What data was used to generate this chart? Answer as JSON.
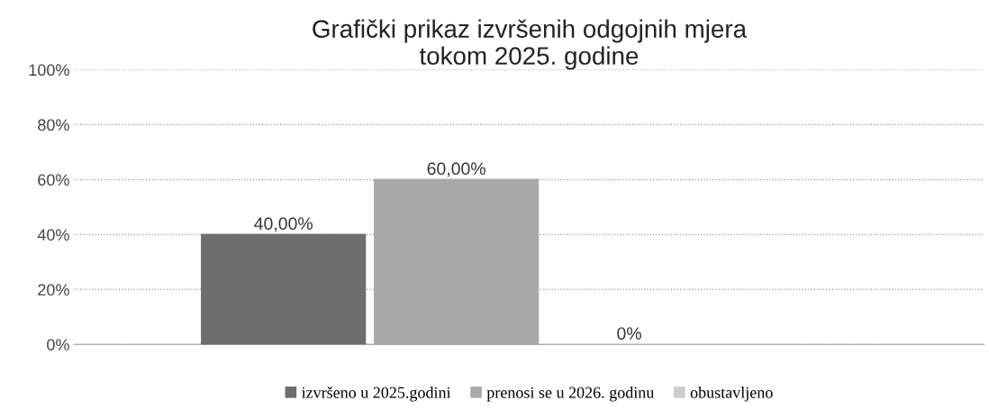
{
  "chart_data": {
    "type": "bar",
    "title": "Grafički prikaz izvršenih odgojnih mjera\ntokom 2025. godine",
    "categories": [
      null
    ],
    "series": [
      {
        "name": "izvršeno u 2025.godini",
        "color": "#6e6e6e",
        "values": [
          40
        ],
        "value_labels": [
          "40,00%"
        ]
      },
      {
        "name": "prenosi se u 2026. godinu",
        "color": "#a9a9a9",
        "values": [
          60
        ],
        "value_labels": [
          "60,00%"
        ]
      },
      {
        "name": "obustavljeno",
        "color": "#cdcdcd",
        "values": [
          0
        ],
        "value_labels": [
          "0%"
        ]
      }
    ],
    "ylim": [
      0,
      100
    ],
    "yticks": [
      {
        "value": 0,
        "label": "0%"
      },
      {
        "value": 20,
        "label": "20%"
      },
      {
        "value": 40,
        "label": "40%"
      },
      {
        "value": 60,
        "label": "60%"
      },
      {
        "value": 80,
        "label": "80%"
      },
      {
        "value": 100,
        "label": "100%"
      }
    ],
    "grid": "y",
    "legend": "bottom"
  }
}
